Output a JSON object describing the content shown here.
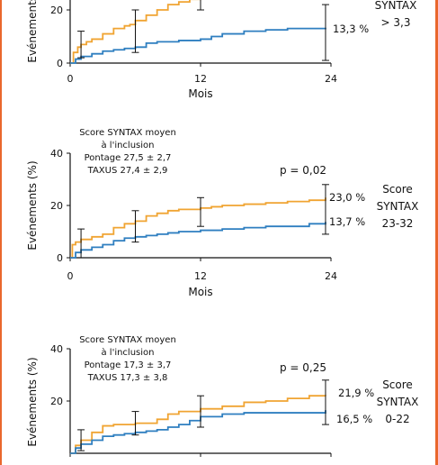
{
  "colors": {
    "frame": "#e9672d",
    "pontage": "#f0a432",
    "taxus": "#2f7fc0",
    "axis": "#111111"
  },
  "chart_data": [
    {
      "type": "line",
      "xlabel": "Mois",
      "ylabel": "Evénements (%)",
      "xlim": [
        0,
        24
      ],
      "ylim": [
        0,
        40
      ],
      "xticks": [
        "0",
        "12",
        "24"
      ],
      "yticks": [
        "0",
        "20"
      ],
      "group_label": [
        "SYNTAX",
        "> 3,3"
      ],
      "annotations": {
        "info": [],
        "pvalue": ""
      },
      "series": [
        {
          "end_label": "",
          "x": [
            0,
            0.3,
            0.7,
            1,
            1.5,
            2,
            3,
            4,
            5,
            5.5,
            6,
            7,
            8,
            9,
            10,
            11,
            12,
            13,
            14,
            15,
            16,
            16.5
          ],
          "y": [
            0,
            4,
            6,
            7,
            8,
            9,
            11,
            13,
            14,
            14.5,
            16,
            18,
            20,
            22,
            23,
            24,
            25,
            25,
            26,
            26.5,
            27,
            27.5
          ]
        },
        {
          "end_label": "13,3 %",
          "x": [
            0,
            0.5,
            1,
            2,
            3,
            4,
            5,
            6,
            7,
            8,
            10,
            12,
            13,
            14,
            16,
            18,
            20,
            22,
            23.5
          ],
          "y": [
            0,
            1.5,
            2.5,
            3.5,
            4.5,
            5,
            5.5,
            6,
            7.5,
            8,
            8.5,
            9,
            10,
            11,
            12,
            12.5,
            13,
            13,
            13.3
          ]
        }
      ],
      "error_bars": [
        {
          "x": 1,
          "lo": 2,
          "hi": 12
        },
        {
          "x": 6,
          "lo": 4,
          "hi": 20
        },
        {
          "x": 12,
          "lo": 20,
          "hi": 30
        },
        {
          "x": 23.5,
          "lo": 1,
          "hi": 22
        }
      ]
    },
    {
      "type": "line",
      "xlabel": "Mois",
      "ylabel": "Evénements (%)",
      "xlim": [
        0,
        24
      ],
      "ylim": [
        0,
        40
      ],
      "xticks": [
        "0",
        "12",
        "24"
      ],
      "yticks": [
        "0",
        "20",
        "40"
      ],
      "group_label": [
        "Score",
        "SYNTAX",
        "23-32"
      ],
      "annotations": {
        "info": [
          "Score SYNTAX moyen",
          "à l'inclusion",
          "Pontage 27,5 ± 2,7",
          "TAXUS 27,4 ± 2,9"
        ],
        "pvalue": "p = 0,02"
      },
      "series": [
        {
          "end_label": "23,0 %",
          "x": [
            0,
            0.2,
            0.5,
            1,
            2,
            3,
            4,
            5,
            6,
            7,
            8,
            9,
            10,
            11,
            12,
            13,
            14,
            16,
            18,
            20,
            22,
            23.5
          ],
          "y": [
            0,
            5,
            6,
            7,
            8,
            9,
            11.5,
            13,
            14,
            16,
            17,
            18,
            18.5,
            18.5,
            19,
            19.5,
            20,
            20.5,
            21,
            21.5,
            22,
            23
          ]
        },
        {
          "end_label": "13,7 %",
          "x": [
            0,
            0.5,
            1,
            2,
            3,
            4,
            5,
            6,
            7,
            8,
            9,
            10,
            12,
            14,
            16,
            18,
            20,
            22,
            23.5
          ],
          "y": [
            0,
            2,
            3,
            4,
            5,
            6.5,
            7.5,
            8,
            8.5,
            9,
            9.5,
            10,
            10.5,
            11,
            11.5,
            12,
            12,
            13,
            13.7
          ]
        }
      ],
      "error_bars": [
        {
          "x": 1,
          "lo": 0,
          "hi": 11
        },
        {
          "x": 6,
          "lo": 6,
          "hi": 18
        },
        {
          "x": 12,
          "lo": 12,
          "hi": 23
        },
        {
          "x": 23.5,
          "lo": 9,
          "hi": 28
        }
      ]
    },
    {
      "type": "line",
      "xlabel": "Mois",
      "ylabel": "Evénements (%)",
      "xlim": [
        0,
        24
      ],
      "ylim": [
        0,
        40
      ],
      "xticks": [],
      "yticks": [
        "20",
        "40"
      ],
      "group_label": [
        "Score",
        "SYNTAX",
        "0-22"
      ],
      "annotations": {
        "info": [
          "Score SYNTAX moyen",
          "à l'inclusion",
          "Pontage 17,3 ± 3,7",
          "TAXUS 17,3 ± 3,8"
        ],
        "pvalue": "p = 0,25"
      },
      "series": [
        {
          "end_label": "21,9 %",
          "x": [
            0,
            0.5,
            1,
            2,
            3,
            4,
            5,
            6,
            8,
            9,
            10,
            12,
            14,
            16,
            18,
            20,
            22,
            23.5
          ],
          "y": [
            0,
            3,
            5,
            8,
            10.5,
            11,
            11,
            11.5,
            13,
            15,
            16,
            17,
            18,
            19.5,
            20,
            21,
            22,
            21.9
          ]
        },
        {
          "end_label": "16,5 %",
          "x": [
            0,
            0.5,
            1,
            2,
            3,
            4,
            5,
            6,
            7,
            8,
            9,
            10,
            11,
            12,
            14,
            16,
            18,
            20,
            22,
            23.5
          ],
          "y": [
            0,
            2,
            3.5,
            5,
            6.5,
            7,
            7.5,
            8,
            8.5,
            9,
            10,
            11,
            12.5,
            14,
            15,
            15.5,
            15.5,
            15.5,
            15.5,
            16.5
          ]
        }
      ],
      "error_bars": [
        {
          "x": 1,
          "lo": 1,
          "hi": 9
        },
        {
          "x": 6,
          "lo": 7,
          "hi": 16
        },
        {
          "x": 12,
          "lo": 10,
          "hi": 22
        },
        {
          "x": 23.5,
          "lo": 11,
          "hi": 28
        }
      ]
    }
  ]
}
